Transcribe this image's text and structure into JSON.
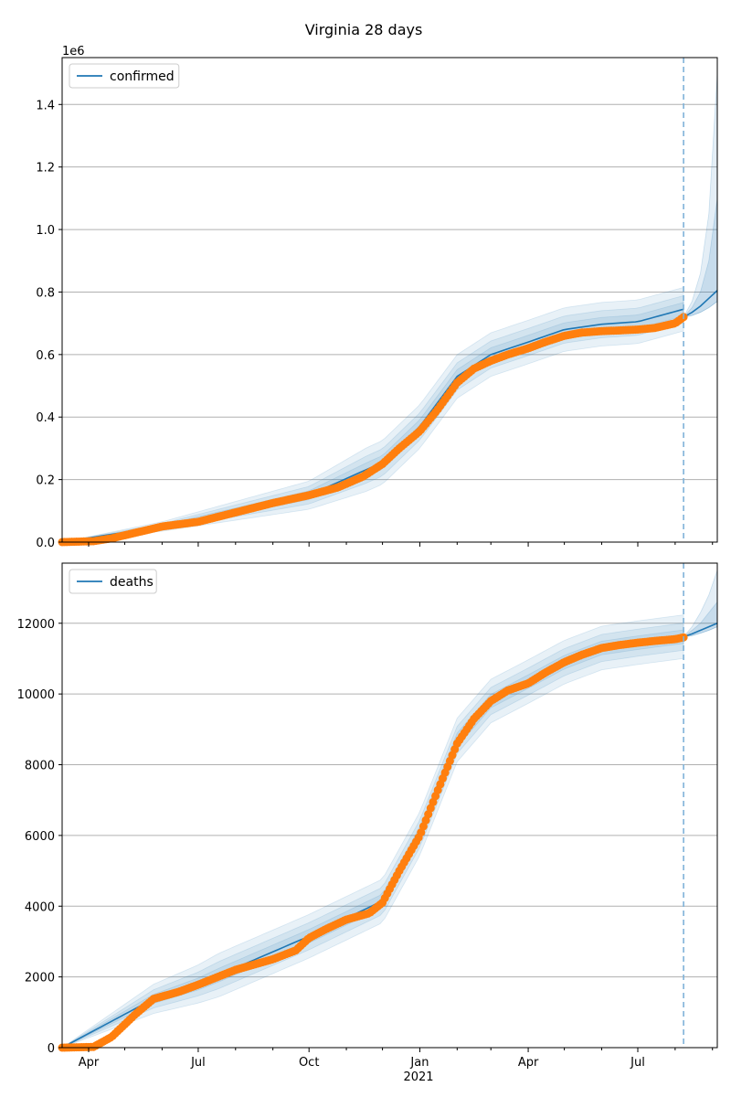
{
  "title": "Virginia 28 days",
  "colors": {
    "model": "#1f77b4",
    "observed": "#ff7f0e",
    "band": "#1f77b4",
    "grid": "#b0b0b0",
    "cutoff": "#7fb2d8"
  },
  "x_axis": {
    "tick_labels": [
      "Apr",
      "Jul",
      "Oct",
      "Jan",
      "Apr",
      "Jul"
    ],
    "tick_dates": [
      "2020-04-01",
      "2020-07-01",
      "2020-10-01",
      "2021-01-01",
      "2021-04-01",
      "2021-07-01"
    ],
    "year_label": "2021",
    "range": [
      "2020-03-10",
      "2021-09-05"
    ]
  },
  "chart_data": [
    {
      "type": "line",
      "series_name": "confirmed",
      "legend": "confirmed",
      "legend_placement": "top-left",
      "offset_label": "1e6",
      "ylim": [
        0,
        1.55
      ],
      "ytick_labels": [
        "0.0",
        "0.2",
        "0.4",
        "0.6",
        "0.8",
        "1.0",
        "1.2",
        "1.4"
      ],
      "grid": true,
      "cutoff_date": "2021-08-08",
      "observed": {
        "dates": [
          "2020-03-10",
          "2020-04-05",
          "2020-04-20",
          "2020-05-10",
          "2020-06-01",
          "2020-07-01",
          "2020-08-01",
          "2020-09-01",
          "2020-10-01",
          "2020-10-25",
          "2020-11-15",
          "2020-12-01",
          "2020-12-15",
          "2021-01-01",
          "2021-01-15",
          "2021-02-01",
          "2021-02-15",
          "2021-03-01",
          "2021-03-15",
          "2021-04-01",
          "2021-04-15",
          "2021-05-01",
          "2021-05-15",
          "2021-06-01",
          "2021-06-15",
          "2021-07-01",
          "2021-07-15",
          "2021-08-01",
          "2021-08-08"
        ],
        "values": [
          0.0,
          0.003,
          0.012,
          0.03,
          0.05,
          0.065,
          0.095,
          0.125,
          0.15,
          0.175,
          0.21,
          0.25,
          0.3,
          0.355,
          0.42,
          0.51,
          0.555,
          0.58,
          0.6,
          0.62,
          0.64,
          0.66,
          0.67,
          0.675,
          0.677,
          0.68,
          0.685,
          0.7,
          0.72
        ]
      },
      "model": {
        "dates": [
          "2020-03-10",
          "2020-06-01",
          "2020-10-01",
          "2020-12-01",
          "2021-01-01",
          "2021-02-01",
          "2021-03-01",
          "2021-04-01",
          "2021-05-01",
          "2021-06-01",
          "2021-07-01",
          "2021-08-08",
          "2021-09-05"
        ],
        "values": [
          0.0,
          0.05,
          0.15,
          0.255,
          0.37,
          0.53,
          0.6,
          0.64,
          0.68,
          0.697,
          0.705,
          0.745,
          0.805
        ]
      },
      "forecast": {
        "dates": [
          "2021-08-08",
          "2021-08-15",
          "2021-08-22",
          "2021-08-29",
          "2021-09-05"
        ],
        "median": [
          0.72,
          0.735,
          0.755,
          0.78,
          0.805
        ],
        "lower": [
          0.72,
          0.725,
          0.735,
          0.75,
          0.77
        ],
        "upper": [
          0.72,
          0.77,
          0.86,
          1.05,
          1.5
        ],
        "inner_upper": [
          0.72,
          0.75,
          0.8,
          0.9,
          1.1
        ]
      }
    },
    {
      "type": "line",
      "series_name": "deaths",
      "legend": "deaths",
      "legend_placement": "top-left",
      "ylim": [
        0,
        13700
      ],
      "ytick_labels": [
        "0",
        "2000",
        "4000",
        "6000",
        "8000",
        "10000",
        "12000"
      ],
      "grid": true,
      "cutoff_date": "2021-08-08",
      "observed": {
        "dates": [
          "2020-03-10",
          "2020-04-05",
          "2020-04-20",
          "2020-05-10",
          "2020-05-25",
          "2020-06-15",
          "2020-07-01",
          "2020-08-01",
          "2020-09-01",
          "2020-09-20",
          "2020-10-01",
          "2020-10-15",
          "2020-11-01",
          "2020-11-20",
          "2020-12-01",
          "2020-12-15",
          "2021-01-01",
          "2021-01-15",
          "2021-02-01",
          "2021-02-15",
          "2021-03-01",
          "2021-03-15",
          "2021-04-01",
          "2021-04-15",
          "2021-05-01",
          "2021-05-15",
          "2021-06-01",
          "2021-06-15",
          "2021-07-01",
          "2021-07-15",
          "2021-08-01",
          "2021-08-08"
        ],
        "values": [
          0,
          20,
          300,
          950,
          1380,
          1580,
          1780,
          2200,
          2500,
          2750,
          3100,
          3350,
          3620,
          3800,
          4100,
          5000,
          6000,
          7200,
          8600,
          9300,
          9800,
          10100,
          10300,
          10600,
          10900,
          11100,
          11300,
          11380,
          11450,
          11500,
          11550,
          11600
        ]
      },
      "model": {
        "dates": [
          "2020-03-10",
          "2020-05-25",
          "2020-07-01",
          "2020-10-01",
          "2020-12-01",
          "2021-01-01",
          "2021-02-01",
          "2021-03-01",
          "2021-04-01",
          "2021-05-01",
          "2021-06-01",
          "2021-07-01",
          "2021-08-08",
          "2021-09-05"
        ],
        "values": [
          0,
          1380,
          1800,
          3150,
          4150,
          6050,
          8700,
          9800,
          10350,
          10900,
          11300,
          11450,
          11620,
          12000
        ]
      },
      "forecast": {
        "dates": [
          "2021-08-08",
          "2021-08-15",
          "2021-08-22",
          "2021-08-29",
          "2021-09-05"
        ],
        "median": [
          11620,
          11700,
          11800,
          11900,
          12000
        ],
        "lower": [
          11620,
          11650,
          11720,
          11800,
          11900
        ],
        "upper": [
          11620,
          11900,
          12300,
          12800,
          13500
        ],
        "inner_upper": [
          11620,
          11800,
          12000,
          12300,
          12600
        ]
      }
    }
  ]
}
